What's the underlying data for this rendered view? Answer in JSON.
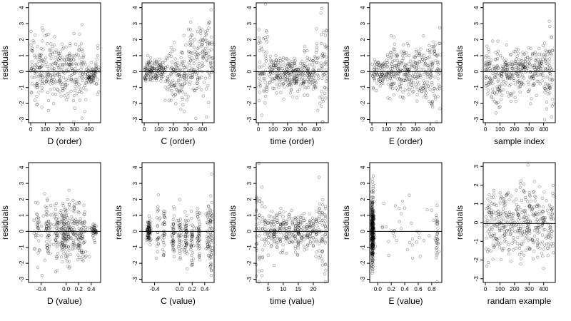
{
  "chart_data": [
    {
      "type": "scatter",
      "xlabel": "D (order)",
      "ylabel": "residuals",
      "xlim": [
        -15,
        480
      ],
      "ylim": [
        -3.2,
        4.3
      ],
      "xticks": [
        0,
        100,
        200,
        300,
        400
      ],
      "yticks": [
        -3,
        -2,
        -1,
        0,
        1,
        2,
        3,
        4
      ],
      "xtick_labels": [
        "0",
        "100",
        "200",
        "300",
        "400"
      ],
      "ytick_labels": [
        "-3",
        "-2",
        "-1",
        "0",
        "1",
        "2",
        "3",
        "4"
      ],
      "hline": 0,
      "pattern": "order_d",
      "seed": 11,
      "n": 420
    },
    {
      "type": "scatter",
      "xlabel": "C (order)",
      "ylabel": "residuals",
      "xlim": [
        -15,
        480
      ],
      "ylim": [
        -3.2,
        4.3
      ],
      "xticks": [
        0,
        100,
        200,
        300,
        400
      ],
      "yticks": [
        -3,
        -2,
        -1,
        0,
        1,
        2,
        3,
        4
      ],
      "xtick_labels": [
        "0",
        "100",
        "200",
        "300",
        "400"
      ],
      "ytick_labels": [
        "-3",
        "-2",
        "-1",
        "0",
        "1",
        "2",
        "3",
        "4"
      ],
      "hline": 0,
      "pattern": "order_c",
      "seed": 23,
      "n": 420
    },
    {
      "type": "scatter",
      "xlabel": "time (order)",
      "ylabel": "residuals",
      "xlim": [
        -15,
        480
      ],
      "ylim": [
        -3.2,
        4.3
      ],
      "xticks": [
        0,
        100,
        200,
        300,
        400
      ],
      "yticks": [
        -3,
        -2,
        -1,
        0,
        1,
        2,
        3,
        4
      ],
      "xtick_labels": [
        "0",
        "100",
        "200",
        "300",
        "400"
      ],
      "ytick_labels": [
        "-3",
        "-2",
        "-1",
        "0",
        "1",
        "2",
        "3",
        "4"
      ],
      "hline": 0,
      "pattern": "order_time",
      "seed": 37,
      "n": 420
    },
    {
      "type": "scatter",
      "xlabel": "E (order)",
      "ylabel": "residuals",
      "xlim": [
        -15,
        480
      ],
      "ylim": [
        -3.2,
        4.3
      ],
      "xticks": [
        0,
        100,
        200,
        300,
        400
      ],
      "yticks": [
        -3,
        -2,
        -1,
        0,
        1,
        2,
        3,
        4
      ],
      "xtick_labels": [
        "0",
        "100",
        "200",
        "300",
        "400"
      ],
      "ytick_labels": [
        "-3",
        "-2",
        "-1",
        "0",
        "1",
        "2",
        "3",
        "4"
      ],
      "hline": 0,
      "pattern": "order_e",
      "seed": 41,
      "n": 420
    },
    {
      "type": "scatter",
      "xlabel": "sample index",
      "ylabel": "residuals",
      "xlim": [
        -15,
        480
      ],
      "ylim": [
        -3.2,
        4.3
      ],
      "xticks": [
        0,
        100,
        200,
        300,
        400
      ],
      "yticks": [
        -3,
        -2,
        -1,
        0,
        1,
        2,
        3,
        4
      ],
      "xtick_labels": [
        "0",
        "100",
        "200",
        "300",
        "400"
      ],
      "ytick_labels": [
        "-3",
        "-2",
        "-1",
        "0",
        "1",
        "2",
        "3",
        "4"
      ],
      "hline": 0,
      "pattern": "index",
      "seed": 53,
      "n": 420
    },
    {
      "type": "scatter",
      "xlabel": "D (value)",
      "ylabel": "residuals",
      "xlim": [
        -0.6,
        0.55
      ],
      "ylim": [
        -3.2,
        4.3
      ],
      "xticks": [
        -0.4,
        0.0,
        0.2,
        0.4
      ],
      "yticks": [
        -3,
        -2,
        -1,
        0,
        1,
        2,
        3,
        4
      ],
      "xtick_labels": [
        "-0.4",
        "0.0",
        "0.2",
        "0.4"
      ],
      "ytick_labels": [
        "-3",
        "-2",
        "-1",
        "0",
        "1",
        "2",
        "3",
        "4"
      ],
      "hline": 0,
      "pattern": "value_d",
      "seed": 61,
      "n": 420
    },
    {
      "type": "scatter",
      "xlabel": "C (value)",
      "ylabel": "residuals",
      "xlim": [
        -0.6,
        0.55
      ],
      "ylim": [
        -3.2,
        4.3
      ],
      "xticks": [
        -0.4,
        0.0,
        0.2,
        0.4
      ],
      "yticks": [
        -3,
        -2,
        -1,
        0,
        1,
        2,
        3,
        4
      ],
      "xtick_labels": [
        "-0.4",
        "0.0",
        "0.2",
        "0.4"
      ],
      "ytick_labels": [
        "-3",
        "-2",
        "-1",
        "0",
        "1",
        "2",
        "3",
        "4"
      ],
      "hline": 0,
      "pattern": "value_c",
      "seed": 71,
      "n": 420
    },
    {
      "type": "scatter",
      "xlabel": "time (value)",
      "ylabel": "residuals",
      "xlim": [
        1,
        25
      ],
      "ylim": [
        -3.2,
        4.3
      ],
      "xticks": [
        5,
        10,
        15,
        20
      ],
      "yticks": [
        -3,
        -2,
        -1,
        0,
        1,
        2,
        3,
        4
      ],
      "xtick_labels": [
        "5",
        "10",
        "15",
        "20"
      ],
      "ytick_labels": [
        "-3",
        "-2",
        "-1",
        "0",
        "1",
        "2",
        "3",
        "4"
      ],
      "hline": 0,
      "pattern": "value_time",
      "seed": 83,
      "n": 420
    },
    {
      "type": "scatter",
      "xlabel": "E (value)",
      "ylabel": "residuals",
      "xlim": [
        -0.12,
        0.95
      ],
      "ylim": [
        -3.2,
        4.3
      ],
      "xticks": [
        0.0,
        0.2,
        0.4,
        0.6,
        0.8
      ],
      "yticks": [
        -3,
        -2,
        -1,
        0,
        1,
        2,
        3,
        4
      ],
      "xtick_labels": [
        "0.0",
        "0.2",
        "0.4",
        "0.6",
        "0.8"
      ],
      "ytick_labels": [
        "-3",
        "-2",
        "-1",
        "0",
        "1",
        "2",
        "3",
        "4"
      ],
      "hline": 0,
      "pattern": "value_e",
      "seed": 97,
      "n": 420
    },
    {
      "type": "scatter",
      "xlabel": "randam example",
      "ylabel": "residuals",
      "xlim": [
        -15,
        480
      ],
      "ylim": [
        -3.2,
        3.2
      ],
      "xticks": [
        0,
        100,
        200,
        300,
        400
      ],
      "yticks": [
        -3,
        -2,
        -1,
        0,
        1,
        2,
        3
      ],
      "xtick_labels": [
        "0",
        "100",
        "200",
        "300",
        "400"
      ],
      "ytick_labels": [
        "-3",
        "-2",
        "-1",
        "0",
        "1",
        "2",
        "3"
      ],
      "hline": -0.05,
      "pattern": "random",
      "seed": 101,
      "n": 420
    }
  ]
}
